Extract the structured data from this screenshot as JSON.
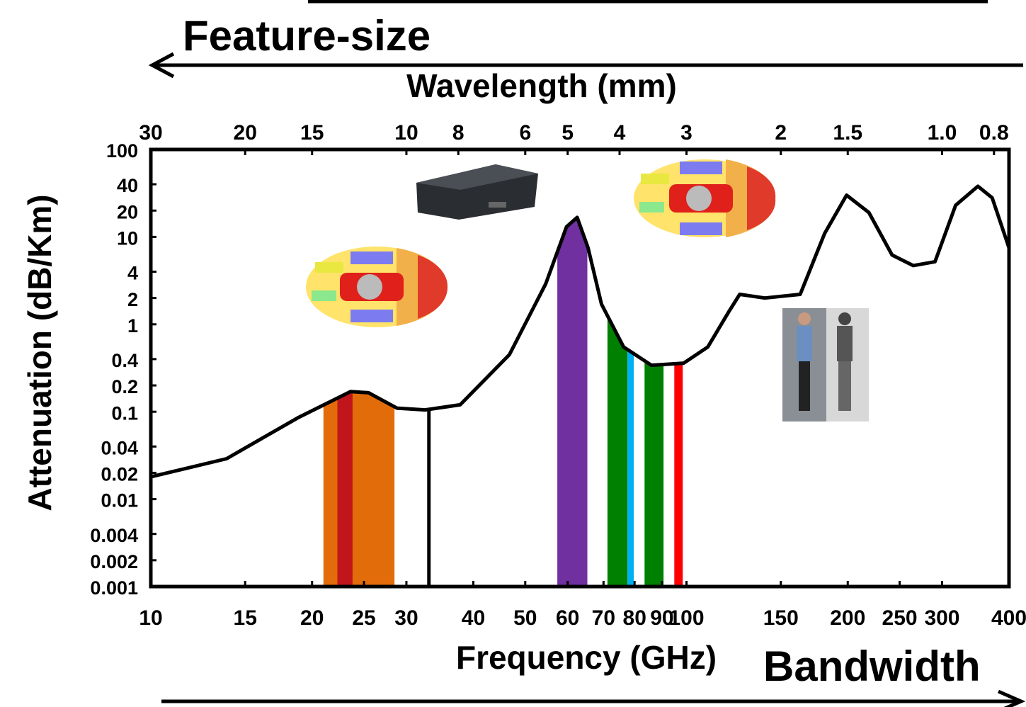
{
  "chart_data": {
    "type": "line",
    "feature_label": "Feature-size",
    "bandwidth_label": "Bandwidth",
    "x2_label": "Wavelength (mm)",
    "x_label": "Frequency (GHz)",
    "y_label": "Attenuation (dB/Km)",
    "xscale": "log",
    "yscale": "log",
    "color": "#000000",
    "x": [
      10,
      13.85,
      18.8,
      23.6,
      25.5,
      28.8,
      32.5,
      37.8,
      46.7,
      54.6,
      59.7,
      62.5,
      65.5,
      69.4,
      76.3,
      86,
      98.8,
      109.6,
      120,
      125.7,
      140,
      163,
      181,
      199,
      219,
      242,
      265,
      291,
      318,
      350,
      372,
      400
    ],
    "values": [
      0.018,
      0.029,
      0.085,
      0.17,
      0.165,
      0.11,
      0.105,
      0.12,
      0.45,
      2.9,
      13,
      16.7,
      7.5,
      1.7,
      0.55,
      0.34,
      0.36,
      0.55,
      1.4,
      2.2,
      2.0,
      2.2,
      10.9,
      30,
      19,
      6.2,
      4.7,
      5.2,
      23,
      38,
      28,
      7.5
    ],
    "bands": [
      {
        "range": [
          21,
          28.5
        ],
        "color": "#e36c0a"
      },
      {
        "range": [
          22.3,
          23.8
        ],
        "color": "#c0161b"
      },
      {
        "range": [
          32.8,
          33.3
        ],
        "color": "#000000"
      },
      {
        "range": [
          57.4,
          65.3
        ],
        "color": "#7030a0"
      },
      {
        "range": [
          71.2,
          77.6
        ],
        "color": "#008000"
      },
      {
        "range": [
          77.6,
          79.7
        ],
        "color": "#00b0f0"
      },
      {
        "range": [
          83.5,
          90.6
        ],
        "color": "#008000"
      },
      {
        "range": [
          94.9,
          98.4
        ],
        "color": "#ff0000"
      }
    ],
    "xlim": [
      10,
      400
    ],
    "xticks": [
      10,
      15,
      20,
      25,
      30,
      40,
      50,
      60,
      70,
      80,
      90,
      100,
      150,
      200,
      250,
      300,
      400
    ],
    "x2lim": [
      30,
      0.75
    ],
    "x2ticks": [
      30,
      20,
      15,
      10,
      8,
      6,
      5,
      4,
      3,
      2,
      1.5,
      {
        "value": 1,
        "label": "1.0"
      },
      0.8
    ],
    "ylim": [
      0.001,
      100
    ],
    "yticks": [
      100,
      40,
      20,
      10,
      4,
      2,
      1,
      0.4,
      0.2,
      0.1,
      0.04,
      0.02,
      0.01,
      0.004,
      0.002,
      0.001
    ]
  }
}
